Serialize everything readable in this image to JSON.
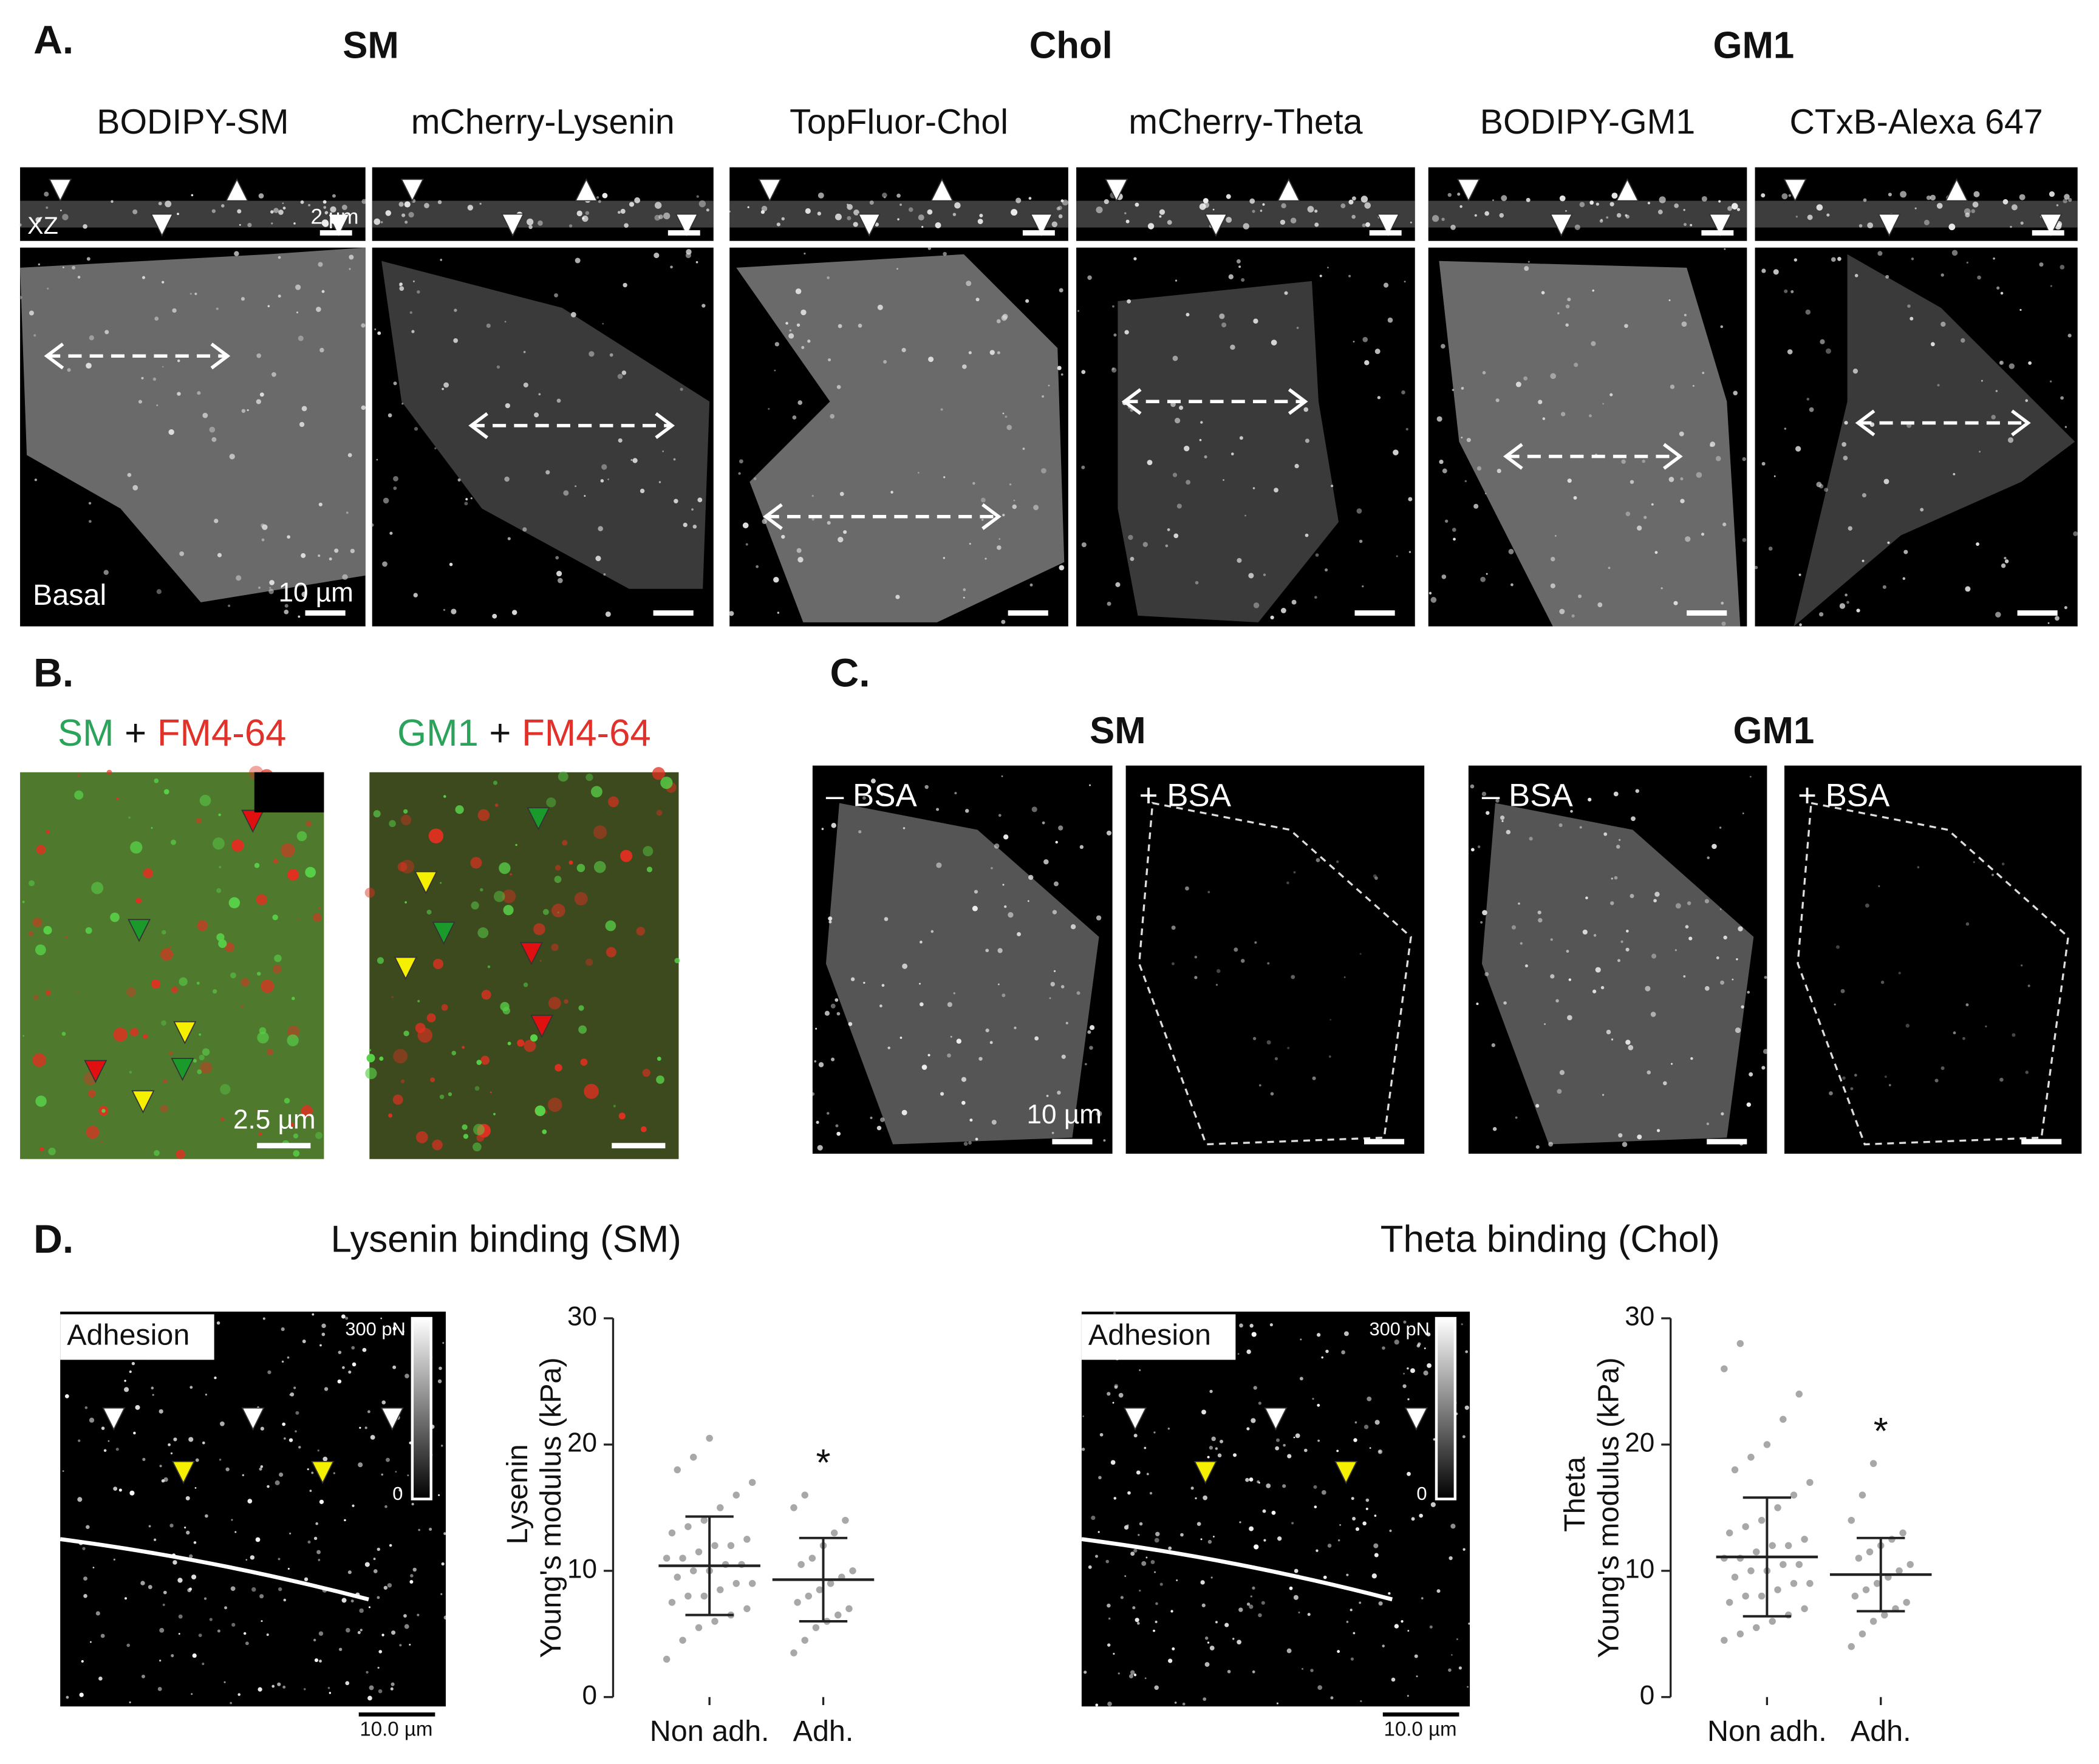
{
  "panel_a": {
    "label": "A.",
    "groups": [
      {
        "title": "SM",
        "channels": [
          "BODIPY-SM",
          "mCherry-Lysenin"
        ]
      },
      {
        "title": "Chol",
        "channels": [
          "TopFluor-Chol",
          "mCherry-Theta"
        ]
      },
      {
        "title": "GM1",
        "channels": [
          "BODIPY-GM1",
          "CTxB-Alexa 647"
        ]
      }
    ],
    "xz_label": "XZ",
    "plane_label": "Basal",
    "xz_scale": "2 µm",
    "scale": "10 µm"
  },
  "panel_b": {
    "label": "B.",
    "images": [
      {
        "lipid": "SM",
        "plus": "+",
        "marker": "FM4-64"
      },
      {
        "lipid": "GM1",
        "plus": "+",
        "marker": "FM4-64"
      }
    ],
    "scale": "2.5 µm"
  },
  "panel_c": {
    "label": "C.",
    "groups": [
      {
        "title": "SM",
        "conditions": [
          "– BSA",
          "+ BSA"
        ]
      },
      {
        "title": "GM1",
        "conditions": [
          "– BSA",
          "+ BSA"
        ]
      }
    ],
    "scale": "10 µm"
  },
  "panel_d": {
    "label": "D.",
    "maps": [
      {
        "title": "Lysenin binding (SM)",
        "channel": "Adhesion",
        "max": "300 pN",
        "min": "0",
        "scale": "10.0 µm"
      },
      {
        "title": "Theta binding (Chol)",
        "channel": "Adhesion",
        "max": "300 pN",
        "min": "0",
        "scale": "10.0 µm"
      }
    ]
  },
  "chart_data": [
    {
      "type": "dotplot",
      "ylabel_top": "Lysenin",
      "ylabel": "Young's modulus (kPa)",
      "categories": [
        "Non adh.",
        "Adh."
      ],
      "means": [
        10.4,
        9.3
      ],
      "errors": [
        3.9,
        3.3
      ],
      "annotation": "*",
      "points": [
        [
          3,
          4.5,
          5.5,
          6,
          6.5,
          7,
          7.5,
          8,
          8,
          8.5,
          9,
          9,
          9.5,
          10,
          10,
          10.5,
          10.5,
          11,
          11,
          11.5,
          12,
          12,
          12.5,
          13,
          13.5,
          14,
          15,
          16,
          17,
          18,
          19,
          20.5
        ],
        [
          3.5,
          4.5,
          5.5,
          6,
          6.5,
          7,
          7.5,
          8,
          8.5,
          9,
          9.5,
          10,
          10.5,
          11,
          12,
          13,
          14,
          15,
          16
        ]
      ],
      "ylim": [
        0,
        30
      ],
      "yticks": [
        0,
        10,
        20,
        30
      ],
      "color": "#a8a8a8"
    },
    {
      "type": "dotplot",
      "ylabel_top": "Theta",
      "ylabel": "Young's modulus (kPa)",
      "categories": [
        "Non adh.",
        "Adh."
      ],
      "means": [
        11.1,
        9.7
      ],
      "errors": [
        4.7,
        2.9
      ],
      "annotation": "*",
      "points": [
        [
          4.5,
          5,
          5.5,
          6,
          6.5,
          7,
          7.5,
          8,
          8,
          8.5,
          9,
          9,
          9.5,
          10,
          10,
          10.5,
          10.5,
          11,
          11,
          11.5,
          12,
          12,
          12.5,
          13,
          13.5,
          14,
          15,
          16,
          17,
          18,
          19,
          20,
          22,
          24,
          26,
          28
        ],
        [
          4,
          5,
          6,
          6.5,
          7,
          7.5,
          8,
          8.5,
          9,
          9.5,
          10,
          10.5,
          11,
          11.5,
          12,
          12.5,
          13,
          14,
          16,
          18.5
        ]
      ],
      "ylim": [
        0,
        30
      ],
      "yticks": [
        0,
        10,
        20,
        30
      ],
      "color": "#a8a8a8"
    }
  ]
}
